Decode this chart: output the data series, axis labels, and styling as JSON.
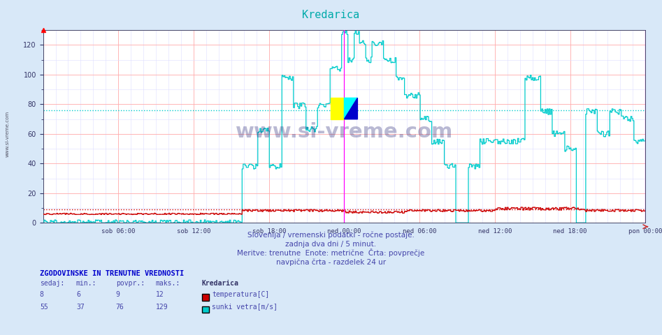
{
  "title": "Kredarica",
  "title_color": "#00aaaa",
  "background_color": "#d8e8f8",
  "plot_bg_color": "#ffffff",
  "grid_color_major": "#ffaaaa",
  "grid_color_minor": "#ddddff",
  "ylim": [
    0,
    130
  ],
  "yticks": [
    0,
    20,
    40,
    60,
    80,
    100,
    120
  ],
  "temp_color": "#cc0000",
  "wind_color": "#00cccc",
  "avg_temp_line": 9,
  "avg_wind_line": 76,
  "avg_temp_color": "#cc0000",
  "avg_wind_color": "#00cccc",
  "vline_color": "#ff00ff",
  "watermark": "www.si-vreme.com",
  "subtitle1": "Slovenija / vremenski podatki - ročne postaje.",
  "subtitle2": "zadnja dva dni / 5 minut.",
  "subtitle3": "Meritve: trenutne  Enote: metrične  Črta: povprečje",
  "subtitle4": "navpična črta - razdelek 24 ur",
  "legend_title": "Kredarica",
  "legend_temp_label": "temperatura[C]",
  "legend_wind_label": "sunki vetra[m/s]",
  "table_header": "ZGODOVINSKE IN TRENUTNE VREDNOSTI",
  "table_cols": [
    "sedaj:",
    "min.:",
    "povpr.:",
    "maks.:"
  ],
  "table_temp": [
    8,
    6,
    9,
    12
  ],
  "table_wind": [
    55,
    37,
    76,
    129
  ],
  "xlabel_ticks": [
    "sob 06:00",
    "sob 12:00",
    "sob 18:00",
    "ned 00:00",
    "ned 06:00",
    "ned 12:00",
    "ned 18:00",
    "pon 00:00"
  ],
  "n_points": 576
}
